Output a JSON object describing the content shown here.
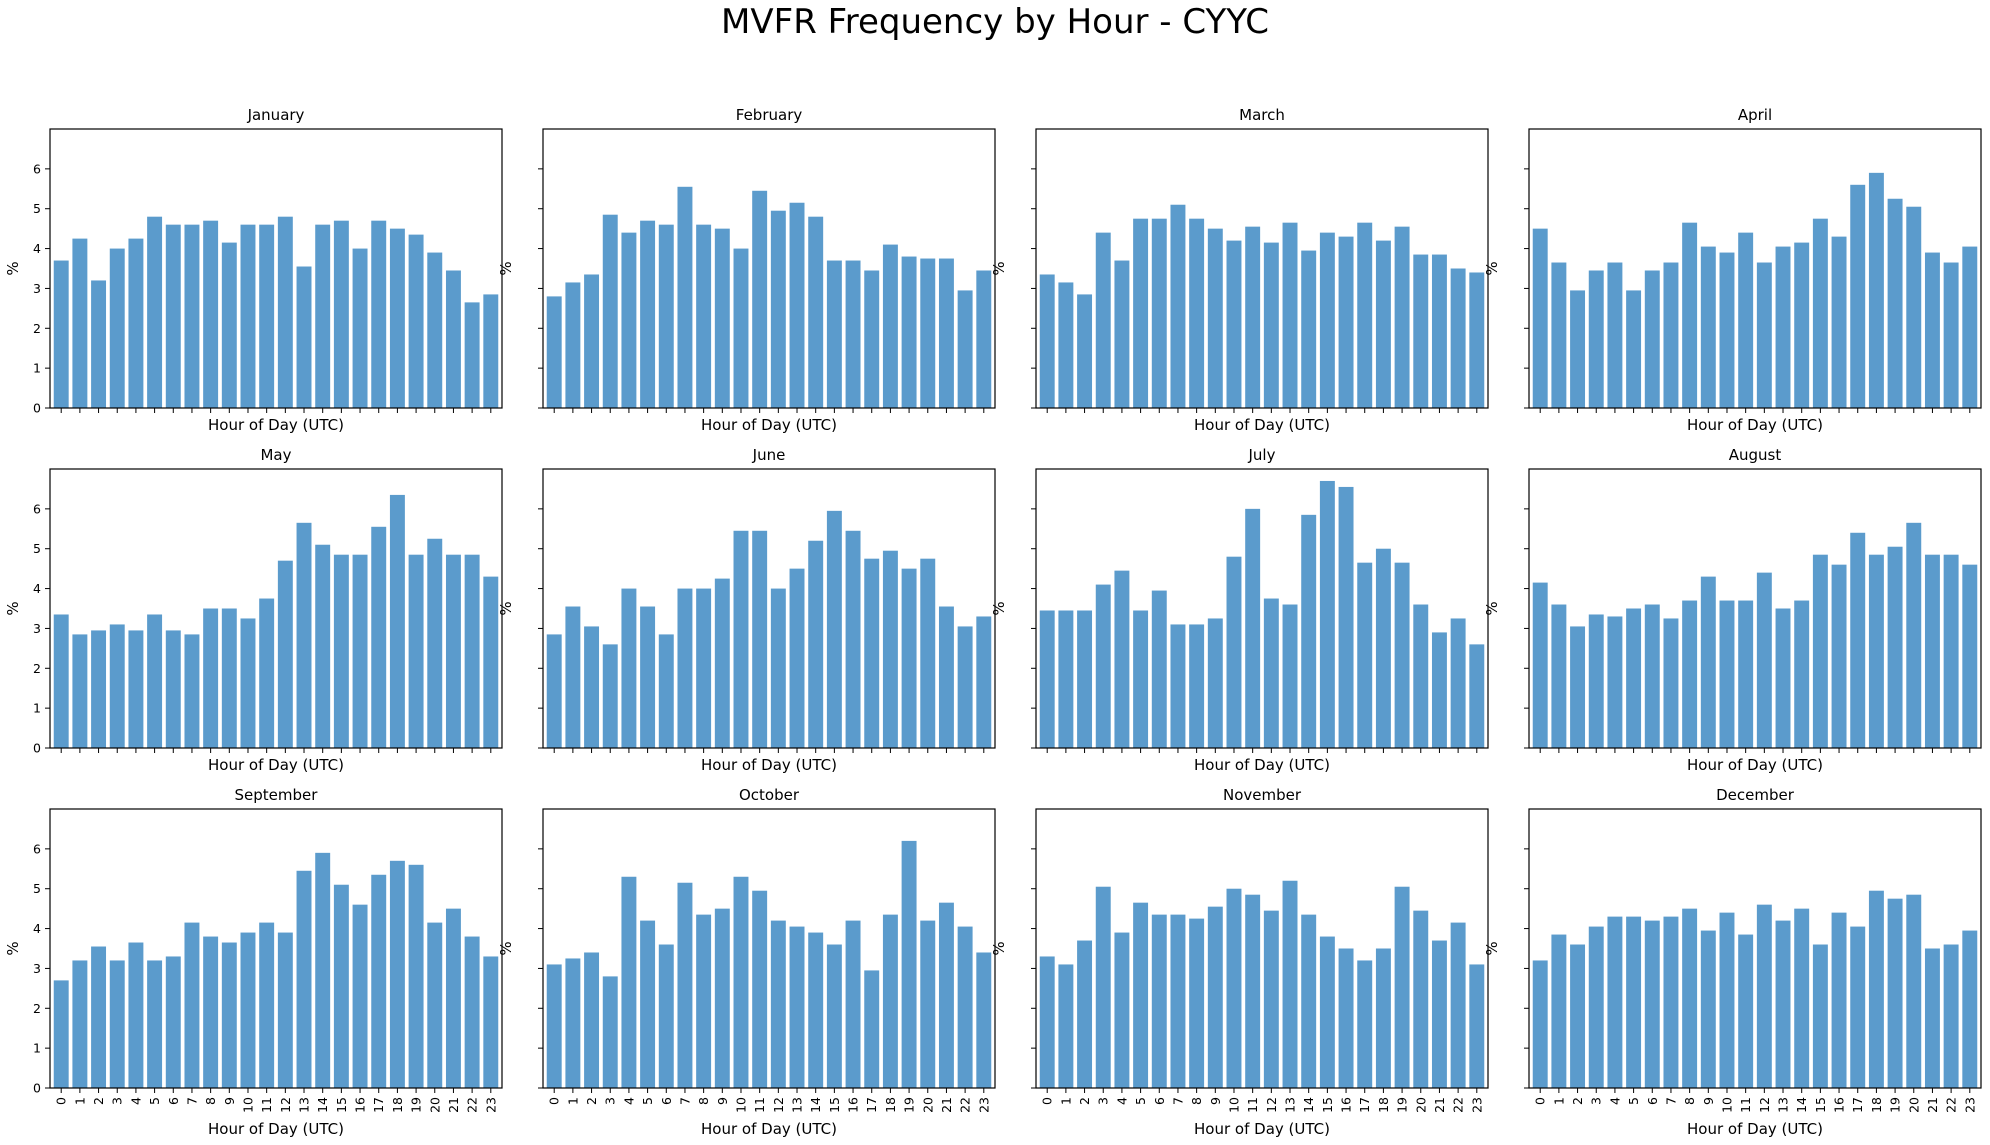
{
  "suptitle": "MVFR Frequency by Hour - CYYC",
  "bar_color": "#5b9bcc",
  "chart_data": [
    {
      "type": "bar",
      "title": "January",
      "xlabel": "Hour of Day (UTC)",
      "ylabel": "%",
      "ylim": [
        0,
        7
      ],
      "yticks": [
        "0",
        "1",
        "2",
        "3",
        "4",
        "5",
        "6"
      ],
      "categories": [
        "0",
        "1",
        "2",
        "3",
        "4",
        "5",
        "6",
        "7",
        "8",
        "9",
        "10",
        "11",
        "12",
        "13",
        "14",
        "15",
        "16",
        "17",
        "18",
        "19",
        "20",
        "21",
        "22",
        "23"
      ],
      "values": [
        3.7,
        4.25,
        3.2,
        4.0,
        4.25,
        4.8,
        4.6,
        4.6,
        4.7,
        4.15,
        4.6,
        4.6,
        4.8,
        3.55,
        4.6,
        4.7,
        4.0,
        4.7,
        4.5,
        4.35,
        3.9,
        3.45,
        2.65,
        2.85
      ]
    },
    {
      "type": "bar",
      "title": "February",
      "xlabel": "Hour of Day (UTC)",
      "ylabel": "%",
      "ylim": [
        0,
        7
      ],
      "yticks": [
        "0",
        "1",
        "2",
        "3",
        "4",
        "5",
        "6"
      ],
      "categories": [
        "0",
        "1",
        "2",
        "3",
        "4",
        "5",
        "6",
        "7",
        "8",
        "9",
        "10",
        "11",
        "12",
        "13",
        "14",
        "15",
        "16",
        "17",
        "18",
        "19",
        "20",
        "21",
        "22",
        "23"
      ],
      "values": [
        2.8,
        3.15,
        3.35,
        4.85,
        4.4,
        4.7,
        4.6,
        5.55,
        4.6,
        4.5,
        4.0,
        5.45,
        4.95,
        5.15,
        4.8,
        3.7,
        3.7,
        3.45,
        4.1,
        3.8,
        3.75,
        3.75,
        2.95,
        3.45
      ]
    },
    {
      "type": "bar",
      "title": "March",
      "xlabel": "Hour of Day (UTC)",
      "ylabel": "%",
      "ylim": [
        0,
        7
      ],
      "yticks": [
        "0",
        "1",
        "2",
        "3",
        "4",
        "5",
        "6"
      ],
      "categories": [
        "0",
        "1",
        "2",
        "3",
        "4",
        "5",
        "6",
        "7",
        "8",
        "9",
        "10",
        "11",
        "12",
        "13",
        "14",
        "15",
        "16",
        "17",
        "18",
        "19",
        "20",
        "21",
        "22",
        "23"
      ],
      "values": [
        3.35,
        3.15,
        2.85,
        4.4,
        3.7,
        4.75,
        4.75,
        5.1,
        4.75,
        4.5,
        4.2,
        4.55,
        4.15,
        4.65,
        3.95,
        4.4,
        4.3,
        4.65,
        4.2,
        4.55,
        3.85,
        3.85,
        3.5,
        3.4
      ]
    },
    {
      "type": "bar",
      "title": "April",
      "xlabel": "Hour of Day (UTC)",
      "ylabel": "%",
      "ylim": [
        0,
        7
      ],
      "yticks": [
        "0",
        "1",
        "2",
        "3",
        "4",
        "5",
        "6"
      ],
      "categories": [
        "0",
        "1",
        "2",
        "3",
        "4",
        "5",
        "6",
        "7",
        "8",
        "9",
        "10",
        "11",
        "12",
        "13",
        "14",
        "15",
        "16",
        "17",
        "18",
        "19",
        "20",
        "21",
        "22",
        "23"
      ],
      "values": [
        4.5,
        3.65,
        2.95,
        3.45,
        3.65,
        2.95,
        3.45,
        3.65,
        4.65,
        4.05,
        3.9,
        4.4,
        3.65,
        4.05,
        4.15,
        4.75,
        4.3,
        5.6,
        5.9,
        5.25,
        5.05,
        3.9,
        3.65,
        4.05
      ]
    },
    {
      "type": "bar",
      "title": "May",
      "xlabel": "Hour of Day (UTC)",
      "ylabel": "%",
      "ylim": [
        0,
        7
      ],
      "yticks": [
        "0",
        "1",
        "2",
        "3",
        "4",
        "5",
        "6"
      ],
      "categories": [
        "0",
        "1",
        "2",
        "3",
        "4",
        "5",
        "6",
        "7",
        "8",
        "9",
        "10",
        "11",
        "12",
        "13",
        "14",
        "15",
        "16",
        "17",
        "18",
        "19",
        "20",
        "21",
        "22",
        "23"
      ],
      "values": [
        3.35,
        2.85,
        2.95,
        3.1,
        2.95,
        3.35,
        2.95,
        2.85,
        3.5,
        3.5,
        3.25,
        3.75,
        4.7,
        5.65,
        5.1,
        4.85,
        4.85,
        5.55,
        6.35,
        4.85,
        5.25,
        4.85,
        4.85,
        4.3
      ]
    },
    {
      "type": "bar",
      "title": "June",
      "xlabel": "Hour of Day (UTC)",
      "ylabel": "%",
      "ylim": [
        0,
        7
      ],
      "yticks": [
        "0",
        "1",
        "2",
        "3",
        "4",
        "5",
        "6"
      ],
      "categories": [
        "0",
        "1",
        "2",
        "3",
        "4",
        "5",
        "6",
        "7",
        "8",
        "9",
        "10",
        "11",
        "12",
        "13",
        "14",
        "15",
        "16",
        "17",
        "18",
        "19",
        "20",
        "21",
        "22",
        "23"
      ],
      "values": [
        2.85,
        3.55,
        3.05,
        2.6,
        4.0,
        3.55,
        2.85,
        4.0,
        4.0,
        4.25,
        5.45,
        5.45,
        4.0,
        4.5,
        5.2,
        5.95,
        5.45,
        4.75,
        4.95,
        4.5,
        4.75,
        3.55,
        3.05,
        3.3
      ]
    },
    {
      "type": "bar",
      "title": "July",
      "xlabel": "Hour of Day (UTC)",
      "ylabel": "%",
      "ylim": [
        0,
        7
      ],
      "yticks": [
        "0",
        "1",
        "2",
        "3",
        "4",
        "5",
        "6"
      ],
      "categories": [
        "0",
        "1",
        "2",
        "3",
        "4",
        "5",
        "6",
        "7",
        "8",
        "9",
        "10",
        "11",
        "12",
        "13",
        "14",
        "15",
        "16",
        "17",
        "18",
        "19",
        "20",
        "21",
        "22",
        "23"
      ],
      "values": [
        3.45,
        3.45,
        3.45,
        4.1,
        4.45,
        3.45,
        3.95,
        3.1,
        3.1,
        3.25,
        4.8,
        6.0,
        3.75,
        3.6,
        5.85,
        6.7,
        6.55,
        4.65,
        5.0,
        4.65,
        3.6,
        2.9,
        3.25,
        2.6
      ]
    },
    {
      "type": "bar",
      "title": "August",
      "xlabel": "Hour of Day (UTC)",
      "ylabel": "%",
      "ylim": [
        0,
        7
      ],
      "yticks": [
        "0",
        "1",
        "2",
        "3",
        "4",
        "5",
        "6"
      ],
      "categories": [
        "0",
        "1",
        "2",
        "3",
        "4",
        "5",
        "6",
        "7",
        "8",
        "9",
        "10",
        "11",
        "12",
        "13",
        "14",
        "15",
        "16",
        "17",
        "18",
        "19",
        "20",
        "21",
        "22",
        "23"
      ],
      "values": [
        4.15,
        3.6,
        3.05,
        3.35,
        3.3,
        3.5,
        3.6,
        3.25,
        3.7,
        4.3,
        3.7,
        3.7,
        4.4,
        3.5,
        3.7,
        4.85,
        4.6,
        5.4,
        4.85,
        5.05,
        5.65,
        4.85,
        4.85,
        4.6
      ]
    },
    {
      "type": "bar",
      "title": "September",
      "xlabel": "Hour of Day (UTC)",
      "ylabel": "%",
      "ylim": [
        0,
        7
      ],
      "yticks": [
        "0",
        "1",
        "2",
        "3",
        "4",
        "5",
        "6"
      ],
      "categories": [
        "0",
        "1",
        "2",
        "3",
        "4",
        "5",
        "6",
        "7",
        "8",
        "9",
        "10",
        "11",
        "12",
        "13",
        "14",
        "15",
        "16",
        "17",
        "18",
        "19",
        "20",
        "21",
        "22",
        "23"
      ],
      "values": [
        2.7,
        3.2,
        3.55,
        3.2,
        3.65,
        3.2,
        3.3,
        4.15,
        3.8,
        3.65,
        3.9,
        4.15,
        3.9,
        5.45,
        5.9,
        5.1,
        4.6,
        5.35,
        5.7,
        5.6,
        4.15,
        4.5,
        3.8,
        3.3
      ]
    },
    {
      "type": "bar",
      "title": "October",
      "xlabel": "Hour of Day (UTC)",
      "ylabel": "%",
      "ylim": [
        0,
        7
      ],
      "yticks": [
        "0",
        "1",
        "2",
        "3",
        "4",
        "5",
        "6"
      ],
      "categories": [
        "0",
        "1",
        "2",
        "3",
        "4",
        "5",
        "6",
        "7",
        "8",
        "9",
        "10",
        "11",
        "12",
        "13",
        "14",
        "15",
        "16",
        "17",
        "18",
        "19",
        "20",
        "21",
        "22",
        "23"
      ],
      "values": [
        3.1,
        3.25,
        3.4,
        2.8,
        5.3,
        4.2,
        3.6,
        5.15,
        4.35,
        4.5,
        5.3,
        4.95,
        4.2,
        4.05,
        3.9,
        3.6,
        4.2,
        2.95,
        4.35,
        6.2,
        4.2,
        4.65,
        4.05,
        3.4
      ]
    },
    {
      "type": "bar",
      "title": "November",
      "xlabel": "Hour of Day (UTC)",
      "ylabel": "%",
      "ylim": [
        0,
        7
      ],
      "yticks": [
        "0",
        "1",
        "2",
        "3",
        "4",
        "5",
        "6"
      ],
      "categories": [
        "0",
        "1",
        "2",
        "3",
        "4",
        "5",
        "6",
        "7",
        "8",
        "9",
        "10",
        "11",
        "12",
        "13",
        "14",
        "15",
        "16",
        "17",
        "18",
        "19",
        "20",
        "21",
        "22",
        "23"
      ],
      "values": [
        3.3,
        3.1,
        3.7,
        5.05,
        3.9,
        4.65,
        4.35,
        4.35,
        4.25,
        4.55,
        5.0,
        4.85,
        4.45,
        5.2,
        4.35,
        3.8,
        3.5,
        3.2,
        3.5,
        5.05,
        4.45,
        3.7,
        4.15,
        3.1
      ]
    },
    {
      "type": "bar",
      "title": "December",
      "xlabel": "Hour of Day (UTC)",
      "ylabel": "%",
      "ylim": [
        0,
        7
      ],
      "yticks": [
        "0",
        "1",
        "2",
        "3",
        "4",
        "5",
        "6"
      ],
      "categories": [
        "0",
        "1",
        "2",
        "3",
        "4",
        "5",
        "6",
        "7",
        "8",
        "9",
        "10",
        "11",
        "12",
        "13",
        "14",
        "15",
        "16",
        "17",
        "18",
        "19",
        "20",
        "21",
        "22",
        "23"
      ],
      "values": [
        3.2,
        3.85,
        3.6,
        4.05,
        4.3,
        4.3,
        4.2,
        4.3,
        4.5,
        3.95,
        4.4,
        3.85,
        4.6,
        4.2,
        4.5,
        3.6,
        4.4,
        4.05,
        4.95,
        4.75,
        4.85,
        3.5,
        3.6,
        3.95
      ]
    }
  ]
}
